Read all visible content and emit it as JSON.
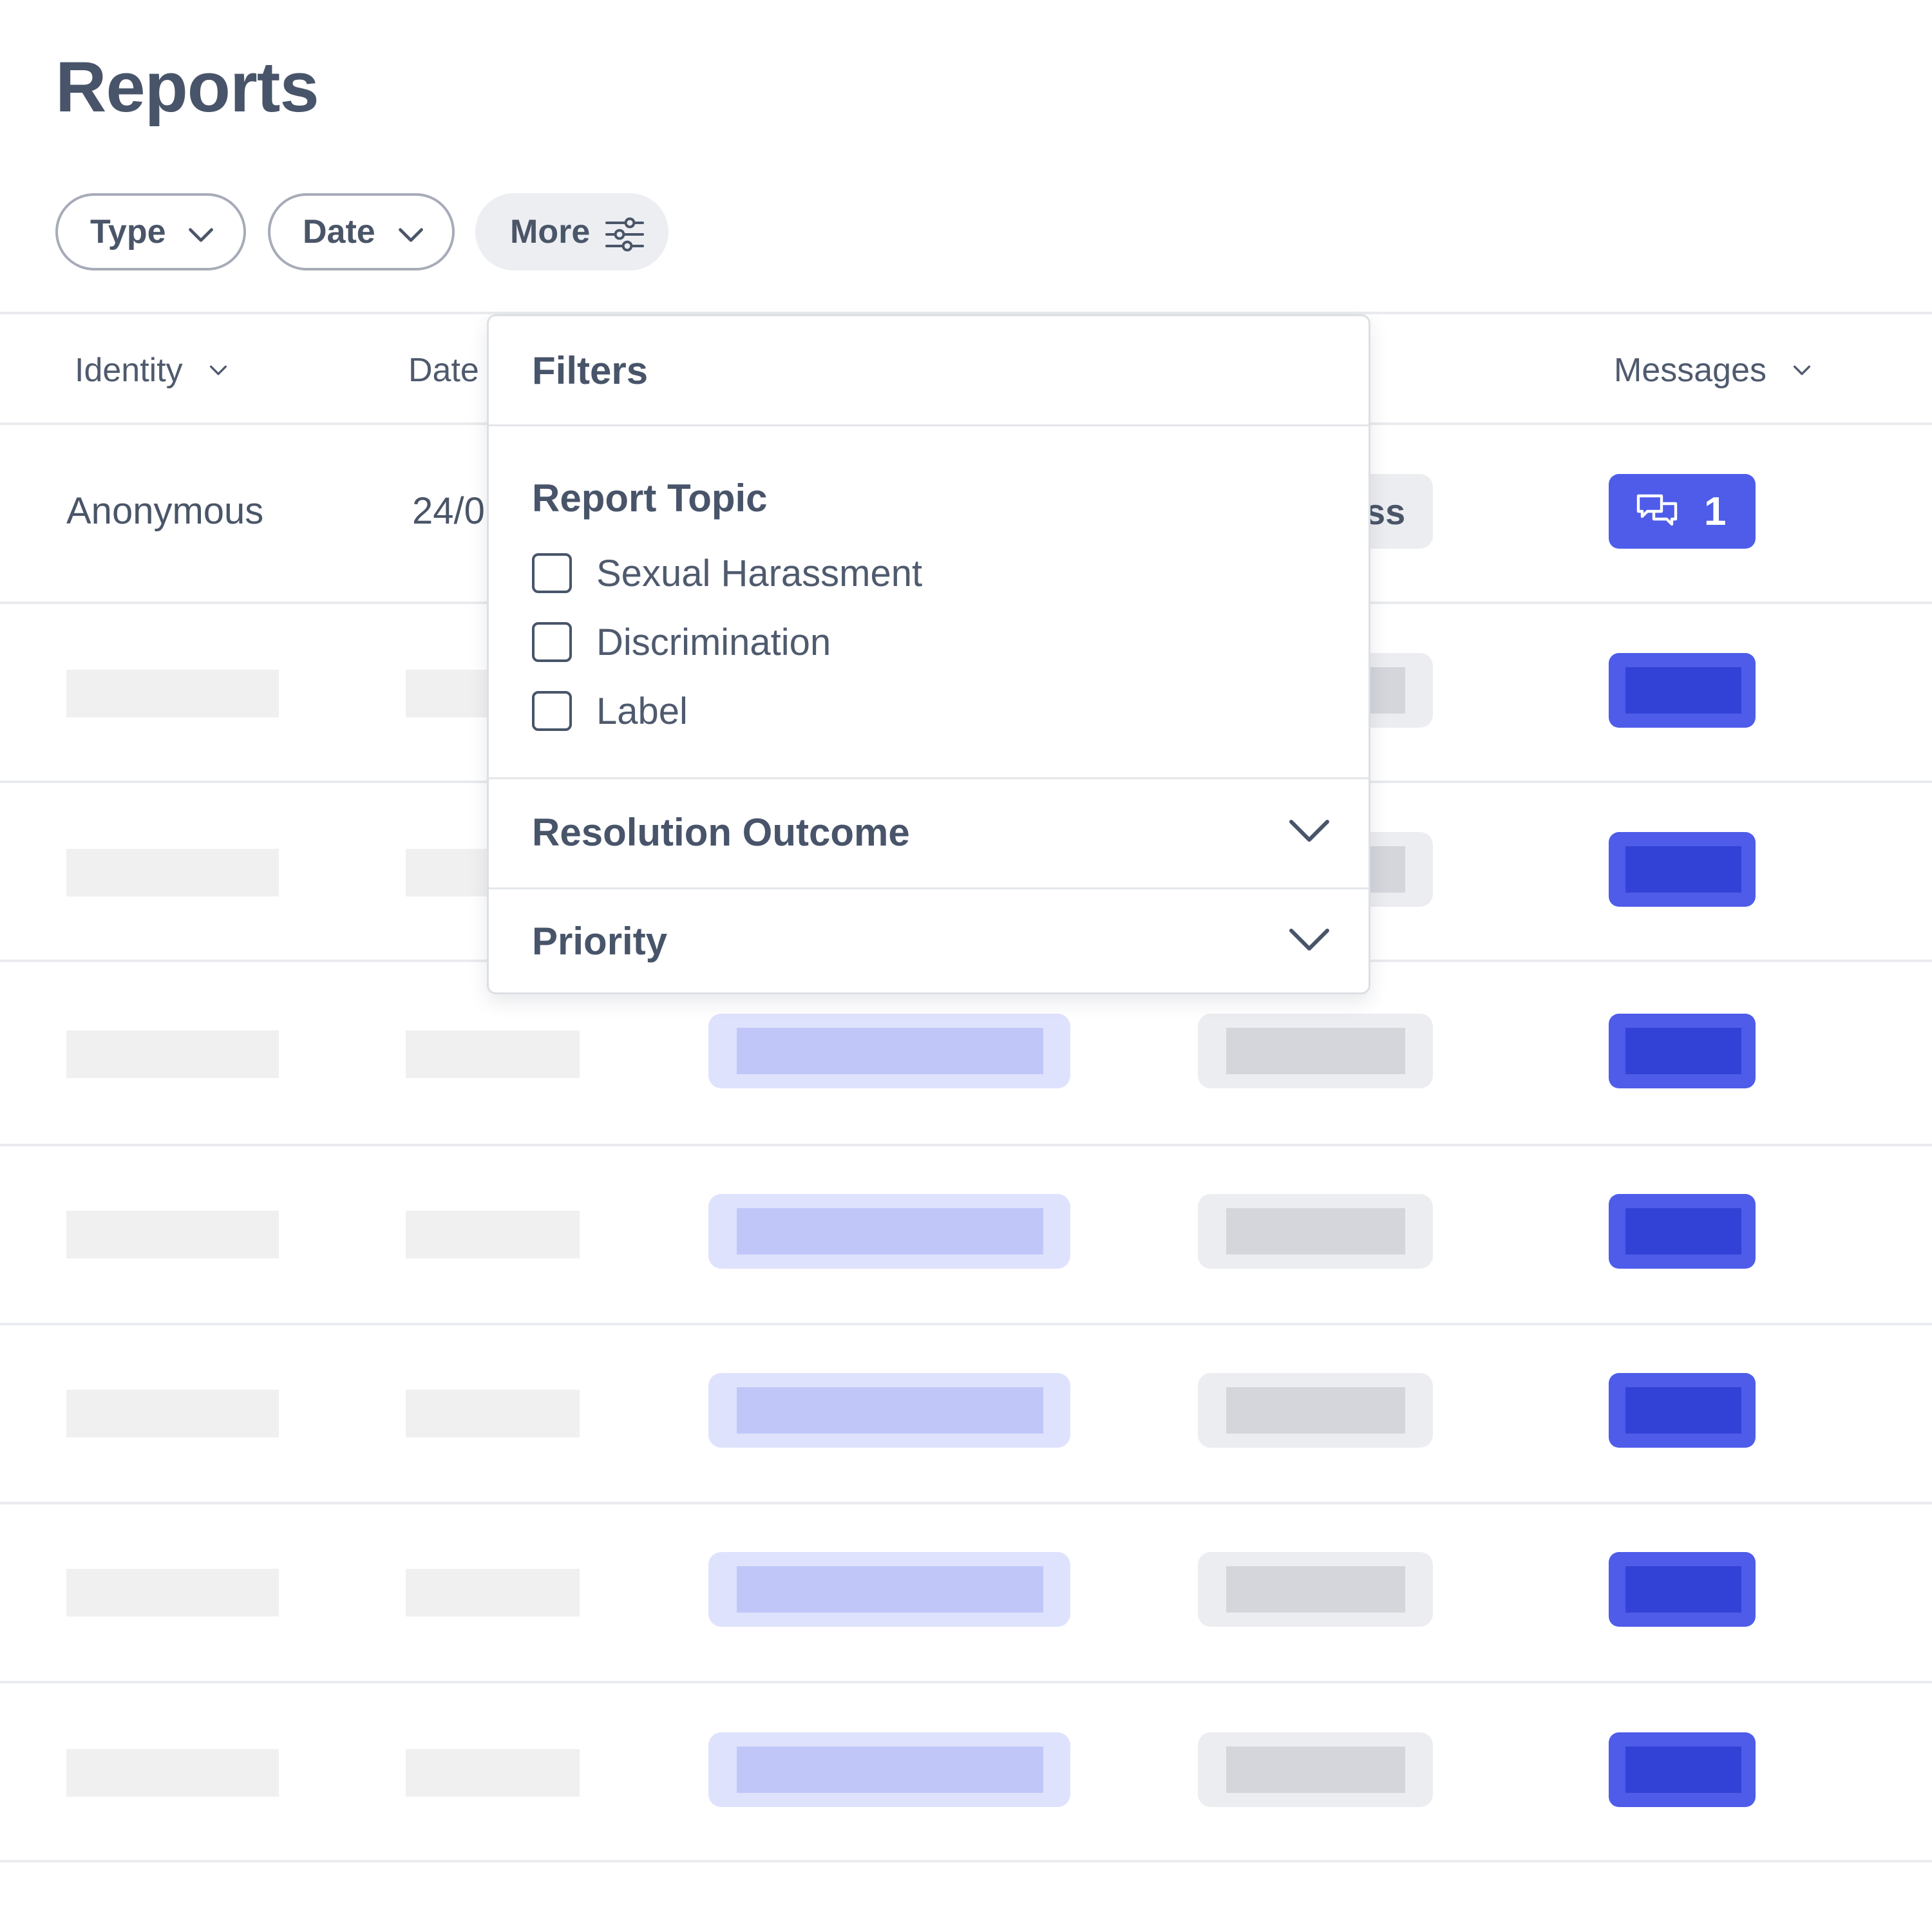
{
  "page": {
    "title": "Reports"
  },
  "filters": {
    "chips": [
      {
        "label": "Type",
        "icon": "chevron-down-icon"
      },
      {
        "label": "Date",
        "icon": "chevron-down-icon"
      },
      {
        "label": "More",
        "icon": "sliders-icon"
      }
    ]
  },
  "table": {
    "headers": [
      {
        "label": "Identity",
        "icon": "chevron-down-icon"
      },
      {
        "label": "Date"
      },
      {
        "label": "Messages",
        "icon": "chevron-down-icon"
      }
    ],
    "first_row": {
      "identity": "Anonymous",
      "date_partial": "24/0",
      "status_partial": "ss",
      "messages_count": "1",
      "messages_icon": "chat-bubbles-icon"
    },
    "skeleton_rows": 7
  },
  "dropdown": {
    "title": "Filters",
    "report_topic": {
      "title": "Report Topic",
      "options": [
        "Sexual Harassment",
        "Discrimination",
        "Label"
      ]
    },
    "sections": [
      {
        "label": "Resolution Outcome",
        "icon": "chevron-down-icon"
      },
      {
        "label": "Priority",
        "icon": "chevron-down-icon"
      }
    ]
  },
  "colors": {
    "accent": "#4e5ce9",
    "accent_dark": "#3242d6",
    "text": "#485469",
    "light_pill": "#dfe2fc"
  }
}
